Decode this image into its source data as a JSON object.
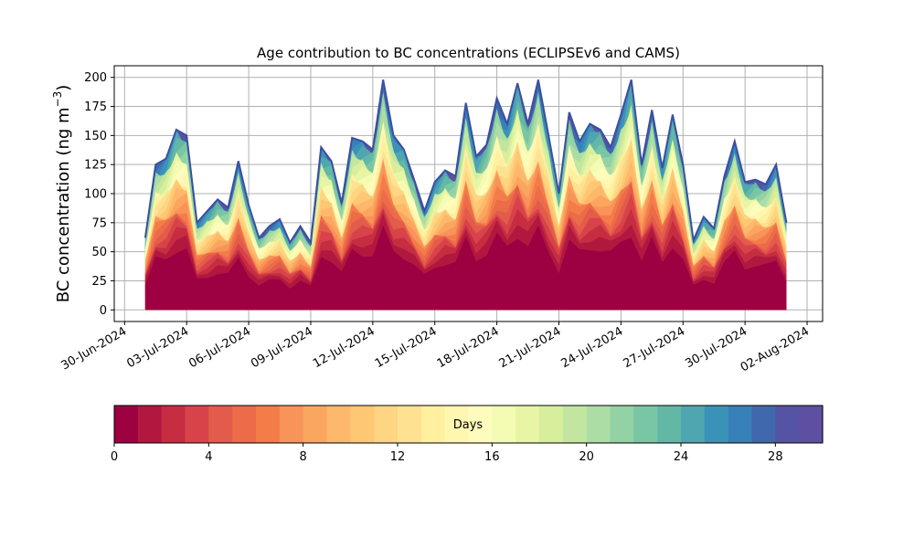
{
  "chart_data": {
    "type": "area",
    "subtype": "stacked-area",
    "title": "Age contribution to BC concentrations (ECLIPSEv6 and CAMS)",
    "xlabel": "",
    "ylabel_main": "BC concentration (ng m",
    "ylabel_sup": "−3",
    "ylabel_tail": ")",
    "ylim": [
      -10,
      210
    ],
    "yticks": [
      0,
      25,
      50,
      75,
      100,
      125,
      150,
      175,
      200
    ],
    "xlim": [
      "2024-06-29T12:00",
      "2024-08-02T18:00"
    ],
    "xticks": [
      "2024-06-30",
      "2024-07-03",
      "2024-07-06",
      "2024-07-09",
      "2024-07-12",
      "2024-07-15",
      "2024-07-18",
      "2024-07-21",
      "2024-07-24",
      "2024-07-27",
      "2024-07-30",
      "2024-08-02"
    ],
    "xtick_labels": [
      "30-Jun-2024",
      "03-Jul-2024",
      "06-Jul-2024",
      "09-Jul-2024",
      "12-Jul-2024",
      "15-Jul-2024",
      "18-Jul-2024",
      "21-Jul-2024",
      "24-Jul-2024",
      "27-Jul-2024",
      "30-Jul-2024",
      "02-Aug-2024"
    ],
    "grid": true,
    "total": {
      "x": [
        "2024-07-01T00:00",
        "2024-07-01T12:00",
        "2024-07-02T00:00",
        "2024-07-02T12:00",
        "2024-07-03T00:00",
        "2024-07-03T12:00",
        "2024-07-04T00:00",
        "2024-07-04T12:00",
        "2024-07-05T00:00",
        "2024-07-05T12:00",
        "2024-07-06T00:00",
        "2024-07-06T12:00",
        "2024-07-07T00:00",
        "2024-07-07T12:00",
        "2024-07-08T00:00",
        "2024-07-08T12:00",
        "2024-07-09T00:00",
        "2024-07-09T12:00",
        "2024-07-10T00:00",
        "2024-07-10T12:00",
        "2024-07-11T00:00",
        "2024-07-11T12:00",
        "2024-07-12T00:00",
        "2024-07-12T12:00",
        "2024-07-13T00:00",
        "2024-07-13T12:00",
        "2024-07-14T00:00",
        "2024-07-14T12:00",
        "2024-07-15T00:00",
        "2024-07-15T12:00",
        "2024-07-16T00:00",
        "2024-07-16T12:00",
        "2024-07-17T00:00",
        "2024-07-17T12:00",
        "2024-07-18T00:00",
        "2024-07-18T12:00",
        "2024-07-19T00:00",
        "2024-07-19T12:00",
        "2024-07-20T00:00",
        "2024-07-20T12:00",
        "2024-07-21T00:00",
        "2024-07-21T12:00",
        "2024-07-22T00:00",
        "2024-07-22T12:00",
        "2024-07-23T00:00",
        "2024-07-23T12:00",
        "2024-07-24T00:00",
        "2024-07-24T12:00",
        "2024-07-25T00:00",
        "2024-07-25T12:00",
        "2024-07-26T00:00",
        "2024-07-26T12:00",
        "2024-07-27T00:00",
        "2024-07-27T12:00",
        "2024-07-28T00:00",
        "2024-07-28T12:00",
        "2024-07-29T00:00",
        "2024-07-29T12:00",
        "2024-07-30T00:00",
        "2024-07-30T12:00",
        "2024-07-31T00:00",
        "2024-07-31T12:00",
        "2024-08-01T00:00"
      ],
      "y": [
        62,
        125,
        130,
        155,
        150,
        75,
        85,
        95,
        88,
        128,
        90,
        62,
        72,
        78,
        58,
        72,
        58,
        140,
        128,
        92,
        148,
        145,
        138,
        198,
        150,
        138,
        112,
        85,
        110,
        120,
        115,
        178,
        132,
        142,
        182,
        160,
        195,
        160,
        198,
        150,
        100,
        170,
        145,
        160,
        155,
        140,
        168,
        198,
        125,
        172,
        122,
        168,
        125,
        60,
        80,
        70,
        115,
        145,
        110,
        112,
        108,
        125,
        75
      ]
    },
    "colorbar": {
      "label": "Days",
      "range": [
        0,
        30
      ],
      "ticks": [
        0,
        4,
        8,
        12,
        16,
        20,
        24,
        28
      ],
      "colors": [
        "#9e0142",
        "#b2173f",
        "#c62d41",
        "#d8434a",
        "#e35b4b",
        "#ec6b48",
        "#f47c49",
        "#f89359",
        "#fba65f",
        "#fdb86b",
        "#fec773",
        "#fed583",
        "#fee291",
        "#fff09f",
        "#fff6b0",
        "#fdfcbd",
        "#f4fbb2",
        "#e7f5a4",
        "#d7ef9c",
        "#c2e69f",
        "#abdda4",
        "#93d2a4",
        "#79c6a5",
        "#62b8a5",
        "#4fa6b0",
        "#3b92b9",
        "#3880b8",
        "#4168ad",
        "#5553a4",
        "#5e4fa2"
      ]
    }
  }
}
